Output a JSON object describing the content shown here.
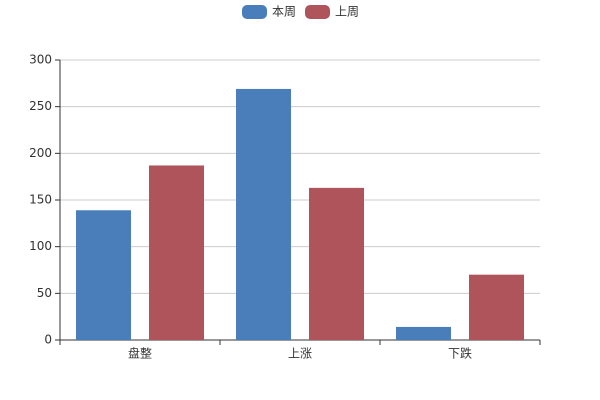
{
  "chart_data": {
    "type": "bar",
    "categories": [
      "盘整",
      "上涨",
      "下跌"
    ],
    "series": [
      {
        "name": "本周",
        "color": "#4a7ebb",
        "values": [
          139,
          269,
          14
        ]
      },
      {
        "name": "上周",
        "color": "#b0545b",
        "values": [
          187,
          163,
          70
        ]
      }
    ],
    "ylim": [
      0,
      300
    ],
    "yticks": [
      0,
      50,
      100,
      150,
      200,
      250,
      300
    ],
    "grid": true,
    "legend": "top"
  }
}
